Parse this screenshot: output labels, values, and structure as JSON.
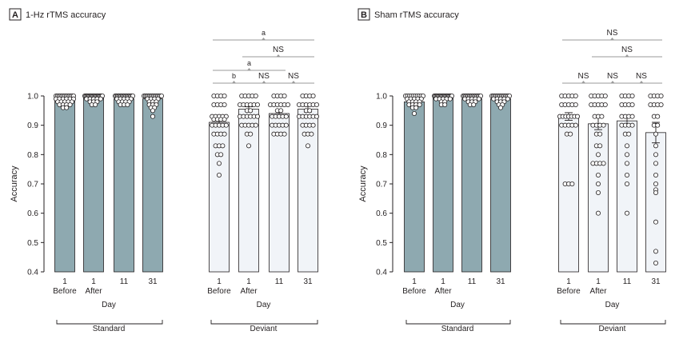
{
  "chart_data": [
    {
      "type": "bar",
      "panel_letter": "A",
      "title": "1-Hz rTMS accuracy",
      "ylabel": "Accuracy",
      "xlabel": "Day",
      "ylim": [
        0.4,
        1.0
      ],
      "yticks": [
        "0.4",
        "0.5",
        "0.6",
        "0.7",
        "0.8",
        "0.9",
        "1.0"
      ],
      "groups": [
        {
          "name": "Standard",
          "bar_color": "#8ea9b0",
          "categories": [
            {
              "day": "1",
              "phase": "Before",
              "value": 0.985,
              "err": 0.004,
              "points": [
                1,
                1,
                1,
                1,
                1,
                1,
                1,
                1,
                1,
                1,
                1,
                1,
                1,
                0.99,
                0.99,
                0.99,
                0.99,
                0.99,
                0.99,
                0.98,
                0.98,
                0.98,
                0.98,
                0.98,
                0.97,
                0.97,
                0.97,
                0.97,
                0.96,
                0.96
              ]
            },
            {
              "day": "1",
              "phase": "After",
              "value": 0.993,
              "err": 0.002,
              "points": [
                1,
                1,
                1,
                1,
                1,
                1,
                1,
                1,
                1,
                1,
                1,
                1,
                1,
                1,
                1,
                1,
                1,
                1,
                0.99,
                0.99,
                0.99,
                0.99,
                0.99,
                0.98,
                0.98,
                0.98,
                0.97,
                0.97
              ]
            },
            {
              "day": "11",
              "phase": "",
              "value": 0.99,
              "err": 0.003,
              "points": [
                1,
                1,
                1,
                1,
                1,
                1,
                1,
                1,
                1,
                1,
                1,
                1,
                1,
                1,
                1,
                1,
                0.99,
                0.99,
                0.99,
                0.99,
                0.99,
                0.98,
                0.98,
                0.98,
                0.98,
                0.97,
                0.97,
                0.97
              ]
            },
            {
              "day": "31",
              "phase": "",
              "value": 0.99,
              "err": 0.004,
              "points": [
                1,
                1,
                1,
                1,
                1,
                1,
                1,
                1,
                1,
                1,
                1,
                1,
                1,
                1,
                0.99,
                0.99,
                0.99,
                0.99,
                0.98,
                0.98,
                0.98,
                0.97,
                0.97,
                0.97,
                0.96,
                0.96,
                0.95,
                0.93
              ]
            }
          ]
        },
        {
          "name": "Deviant",
          "bar_color": "#f1f4f8",
          "categories": [
            {
              "day": "1",
              "phase": "Before",
              "value": 0.91,
              "err": 0.012,
              "points": [
                1,
                1,
                1,
                1,
                0.97,
                0.97,
                0.97,
                0.97,
                0.93,
                0.93,
                0.93,
                0.93,
                0.93,
                0.92,
                0.92,
                0.92,
                0.92,
                0.9,
                0.9,
                0.9,
                0.9,
                0.9,
                0.87,
                0.87,
                0.87,
                0.87,
                0.83,
                0.83,
                0.83,
                0.8,
                0.8,
                0.77,
                0.73
              ]
            },
            {
              "day": "1",
              "phase": "After",
              "value": 0.955,
              "err": 0.008,
              "points": [
                1,
                1,
                1,
                1,
                1,
                0.97,
                0.97,
                0.97,
                0.97,
                0.97,
                0.97,
                0.95,
                0.95,
                0.93,
                0.93,
                0.93,
                0.93,
                0.93,
                0.93,
                0.9,
                0.9,
                0.9,
                0.9,
                0.9,
                0.87,
                0.87,
                0.83
              ]
            },
            {
              "day": "11",
              "phase": "",
              "value": 0.94,
              "err": 0.01,
              "points": [
                1,
                1,
                1,
                1,
                0.97,
                0.97,
                0.97,
                0.97,
                0.97,
                0.97,
                0.95,
                0.95,
                0.93,
                0.93,
                0.93,
                0.93,
                0.93,
                0.9,
                0.9,
                0.9,
                0.9,
                0.9,
                0.87,
                0.87,
                0.87,
                0.87
              ]
            },
            {
              "day": "31",
              "phase": "",
              "value": 0.955,
              "err": 0.01,
              "points": [
                1,
                1,
                1,
                1,
                0.97,
                0.97,
                0.97,
                0.97,
                0.97,
                0.97,
                0.95,
                0.95,
                0.93,
                0.93,
                0.93,
                0.93,
                0.93,
                0.93,
                0.9,
                0.9,
                0.9,
                0.9,
                0.87,
                0.87,
                0.87,
                0.83
              ]
            }
          ]
        }
      ],
      "comparisons": [
        {
          "from": [
            1,
            0
          ],
          "to": [
            1,
            1
          ],
          "label": "b"
        },
        {
          "from": [
            1,
            1
          ],
          "to": [
            1,
            2
          ],
          "label": "NS"
        },
        {
          "from": [
            1,
            2
          ],
          "to": [
            1,
            3
          ],
          "label": "NS"
        },
        {
          "from": [
            1,
            0
          ],
          "to": [
            1,
            2
          ],
          "label": "a"
        },
        {
          "from": [
            1,
            1
          ],
          "to": [
            1,
            3
          ],
          "label": "NS"
        },
        {
          "from": [
            1,
            0
          ],
          "to": [
            1,
            3
          ],
          "label": "a"
        }
      ]
    },
    {
      "type": "bar",
      "panel_letter": "B",
      "title": "Sham rTMS accuracy",
      "ylabel": "Accuracy",
      "xlabel": "Day",
      "ylim": [
        0.4,
        1.0
      ],
      "yticks": [
        "0.4",
        "0.5",
        "0.6",
        "0.7",
        "0.8",
        "0.9",
        "1.0"
      ],
      "groups": [
        {
          "name": "Standard",
          "bar_color": "#8ea9b0",
          "categories": [
            {
              "day": "1",
              "phase": "Before",
              "value": 0.98,
              "err": 0.005,
              "points": [
                1,
                1,
                1,
                1,
                1,
                1,
                1,
                1,
                1,
                1,
                0.99,
                0.99,
                0.99,
                0.99,
                0.99,
                0.98,
                0.98,
                0.98,
                0.98,
                0.97,
                0.97,
                0.97,
                0.97,
                0.96,
                0.96,
                0.94
              ]
            },
            {
              "day": "1",
              "phase": "After",
              "value": 0.995,
              "err": 0.002,
              "points": [
                1,
                1,
                1,
                1,
                1,
                1,
                1,
                1,
                1,
                1,
                1,
                1,
                1,
                1,
                1,
                1,
                1,
                1,
                0.99,
                0.99,
                0.99,
                0.99,
                0.99,
                0.98,
                0.98,
                0.97,
                0.97
              ]
            },
            {
              "day": "11",
              "phase": "",
              "value": 0.99,
              "err": 0.003,
              "points": [
                1,
                1,
                1,
                1,
                1,
                1,
                1,
                1,
                1,
                1,
                1,
                1,
                1,
                1,
                1,
                0.99,
                0.99,
                0.99,
                0.99,
                0.99,
                0.98,
                0.98,
                0.98,
                0.97,
                0.97
              ]
            },
            {
              "day": "31",
              "phase": "",
              "value": 0.99,
              "err": 0.003,
              "points": [
                1,
                1,
                1,
                1,
                1,
                1,
                1,
                1,
                1,
                1,
                1,
                1,
                1,
                1,
                0.99,
                0.99,
                0.99,
                0.99,
                0.99,
                0.98,
                0.98,
                0.98,
                0.97,
                0.97,
                0.96
              ]
            }
          ]
        },
        {
          "name": "Deviant",
          "bar_color": "#f1f4f8",
          "categories": [
            {
              "day": "1",
              "phase": "Before",
              "value": 0.93,
              "err": 0.013,
              "points": [
                1,
                1,
                1,
                1,
                1,
                0.97,
                0.97,
                0.97,
                0.97,
                0.97,
                0.93,
                0.93,
                0.93,
                0.93,
                0.93,
                0.93,
                0.93,
                0.9,
                0.9,
                0.9,
                0.9,
                0.9,
                0.87,
                0.87,
                0.7,
                0.7,
                0.7
              ]
            },
            {
              "day": "1",
              "phase": "After",
              "value": 0.905,
              "err": 0.02,
              "points": [
                1,
                1,
                1,
                1,
                1,
                0.97,
                0.97,
                0.97,
                0.97,
                0.97,
                0.93,
                0.93,
                0.93,
                0.9,
                0.9,
                0.9,
                0.9,
                0.87,
                0.87,
                0.83,
                0.83,
                0.8,
                0.77,
                0.77,
                0.77,
                0.77,
                0.73,
                0.7,
                0.67,
                0.6
              ]
            },
            {
              "day": "11",
              "phase": "",
              "value": 0.915,
              "err": 0.018,
              "points": [
                1,
                1,
                1,
                1,
                0.97,
                0.97,
                0.97,
                0.97,
                0.93,
                0.93,
                0.93,
                0.93,
                0.9,
                0.9,
                0.9,
                0.9,
                0.87,
                0.87,
                0.83,
                0.8,
                0.77,
                0.73,
                0.7,
                0.6
              ]
            },
            {
              "day": "31",
              "phase": "",
              "value": 0.875,
              "err": 0.035,
              "points": [
                1,
                1,
                1,
                1,
                0.97,
                0.97,
                0.97,
                0.97,
                0.93,
                0.93,
                0.9,
                0.9,
                0.87,
                0.83,
                0.8,
                0.77,
                0.73,
                0.7,
                0.68,
                0.67,
                0.57,
                0.47,
                0.43
              ]
            }
          ]
        }
      ],
      "comparisons": [
        {
          "from": [
            1,
            0
          ],
          "to": [
            1,
            1
          ],
          "label": "NS"
        },
        {
          "from": [
            1,
            1
          ],
          "to": [
            1,
            2
          ],
          "label": "NS"
        },
        {
          "from": [
            1,
            2
          ],
          "to": [
            1,
            3
          ],
          "label": "NS"
        },
        {
          "from": [
            1,
            1
          ],
          "to": [
            1,
            3
          ],
          "label": "NS"
        },
        {
          "from": [
            1,
            0
          ],
          "to": [
            1,
            3
          ],
          "label": "NS"
        }
      ]
    }
  ]
}
